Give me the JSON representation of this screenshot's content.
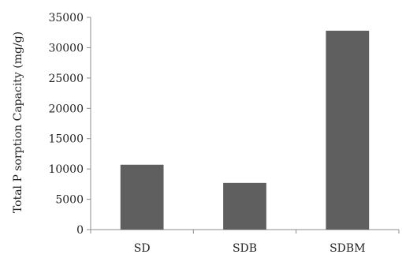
{
  "chart_data": {
    "type": "bar",
    "title": "",
    "xlabel": "",
    "ylabel": "Total P sorption Capacity (mg/g)",
    "categories": [
      "SD",
      "SDB",
      "SDBM"
    ],
    "values": [
      10700,
      7700,
      32800
    ],
    "ylim": [
      0,
      35000
    ],
    "yticks": [
      0,
      5000,
      10000,
      15000,
      20000,
      25000,
      30000,
      35000
    ],
    "ytick_labels": [
      "0",
      "5000",
      "10000",
      "15000",
      "20000",
      "25000",
      "30000",
      "35000"
    ],
    "grid": false,
    "legend": "none",
    "bar_color": "#5f5f5f",
    "axis_color": "#8c8c8c"
  }
}
